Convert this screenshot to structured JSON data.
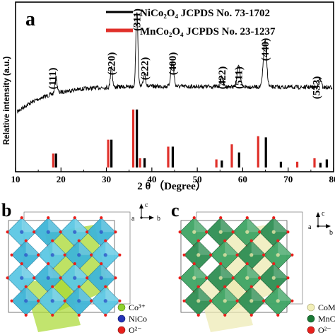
{
  "panel_a": {
    "label": "a",
    "ylabel": "Relative intensity (a.u.)",
    "xlabel": "2 θ （Degree）",
    "legend": [
      {
        "label": "NiCo₂O₄  JCPDS No. 73-1702",
        "color": "#000000"
      },
      {
        "label": "MnCo₂O₄  JCPDS No. 23-1237",
        "color": "#e0302a"
      }
    ]
  },
  "chart_data": {
    "type": "line",
    "xlim": [
      10,
      80
    ],
    "xticks": [
      10,
      20,
      30,
      40,
      50,
      60,
      70,
      80
    ],
    "grid": false,
    "xrd_peaks": [
      {
        "hkl": "(111)",
        "pos": 18.9
      },
      {
        "hkl": "(220)",
        "pos": 31.1
      },
      {
        "hkl": "(311)",
        "pos": 36.7
      },
      {
        "hkl": "(222)",
        "pos": 38.4
      },
      {
        "hkl": "(400)",
        "pos": 44.5
      },
      {
        "hkl": "(422)",
        "pos": 55.4
      },
      {
        "hkl": "(511)",
        "pos": 59.1
      },
      {
        "hkl": "(440)",
        "pos": 64.9
      },
      {
        "hkl": "(533)",
        "pos": 77.0
      }
    ],
    "reference_black": {
      "name": "NiCo₂O₄  JCPDS No. 73-1702",
      "x": [
        18.9,
        31.1,
        36.7,
        38.4,
        44.6,
        55.4,
        59.2,
        65.1,
        68.4,
        77.1,
        78.5
      ],
      "y": [
        0.24,
        0.48,
        1.0,
        0.16,
        0.36,
        0.12,
        0.26,
        0.52,
        0.1,
        0.08,
        0.14
      ]
    },
    "reference_red": {
      "name": "MnCo₂O₄  JCPDS No. 23-1237",
      "x": [
        18.3,
        30.4,
        35.9,
        37.4,
        43.6,
        54.2,
        57.6,
        63.4,
        72.0,
        75.8
      ],
      "y": [
        0.24,
        0.48,
        1.0,
        0.16,
        0.36,
        0.14,
        0.4,
        0.54,
        0.1,
        0.16
      ]
    }
  },
  "panel_b": {
    "label": "b",
    "axes": {
      "c": "c",
      "a": "a",
      "b": "b"
    },
    "legend": [
      {
        "label": "Co³⁺",
        "color": "#8ed12f"
      },
      {
        "label": "NiCo",
        "color": "#2634b8"
      },
      {
        "label": "O²⁻",
        "color": "#e8201c"
      }
    ]
  },
  "panel_c": {
    "label": "c",
    "axes": {
      "c": "c",
      "a": "a",
      "b": "b"
    },
    "legend": [
      {
        "label": "CoM",
        "color": "#f2efb8"
      },
      {
        "label": "MnC",
        "color": "#1a7a35"
      },
      {
        "label": "O²⁻",
        "color": "#e8201c"
      }
    ]
  }
}
